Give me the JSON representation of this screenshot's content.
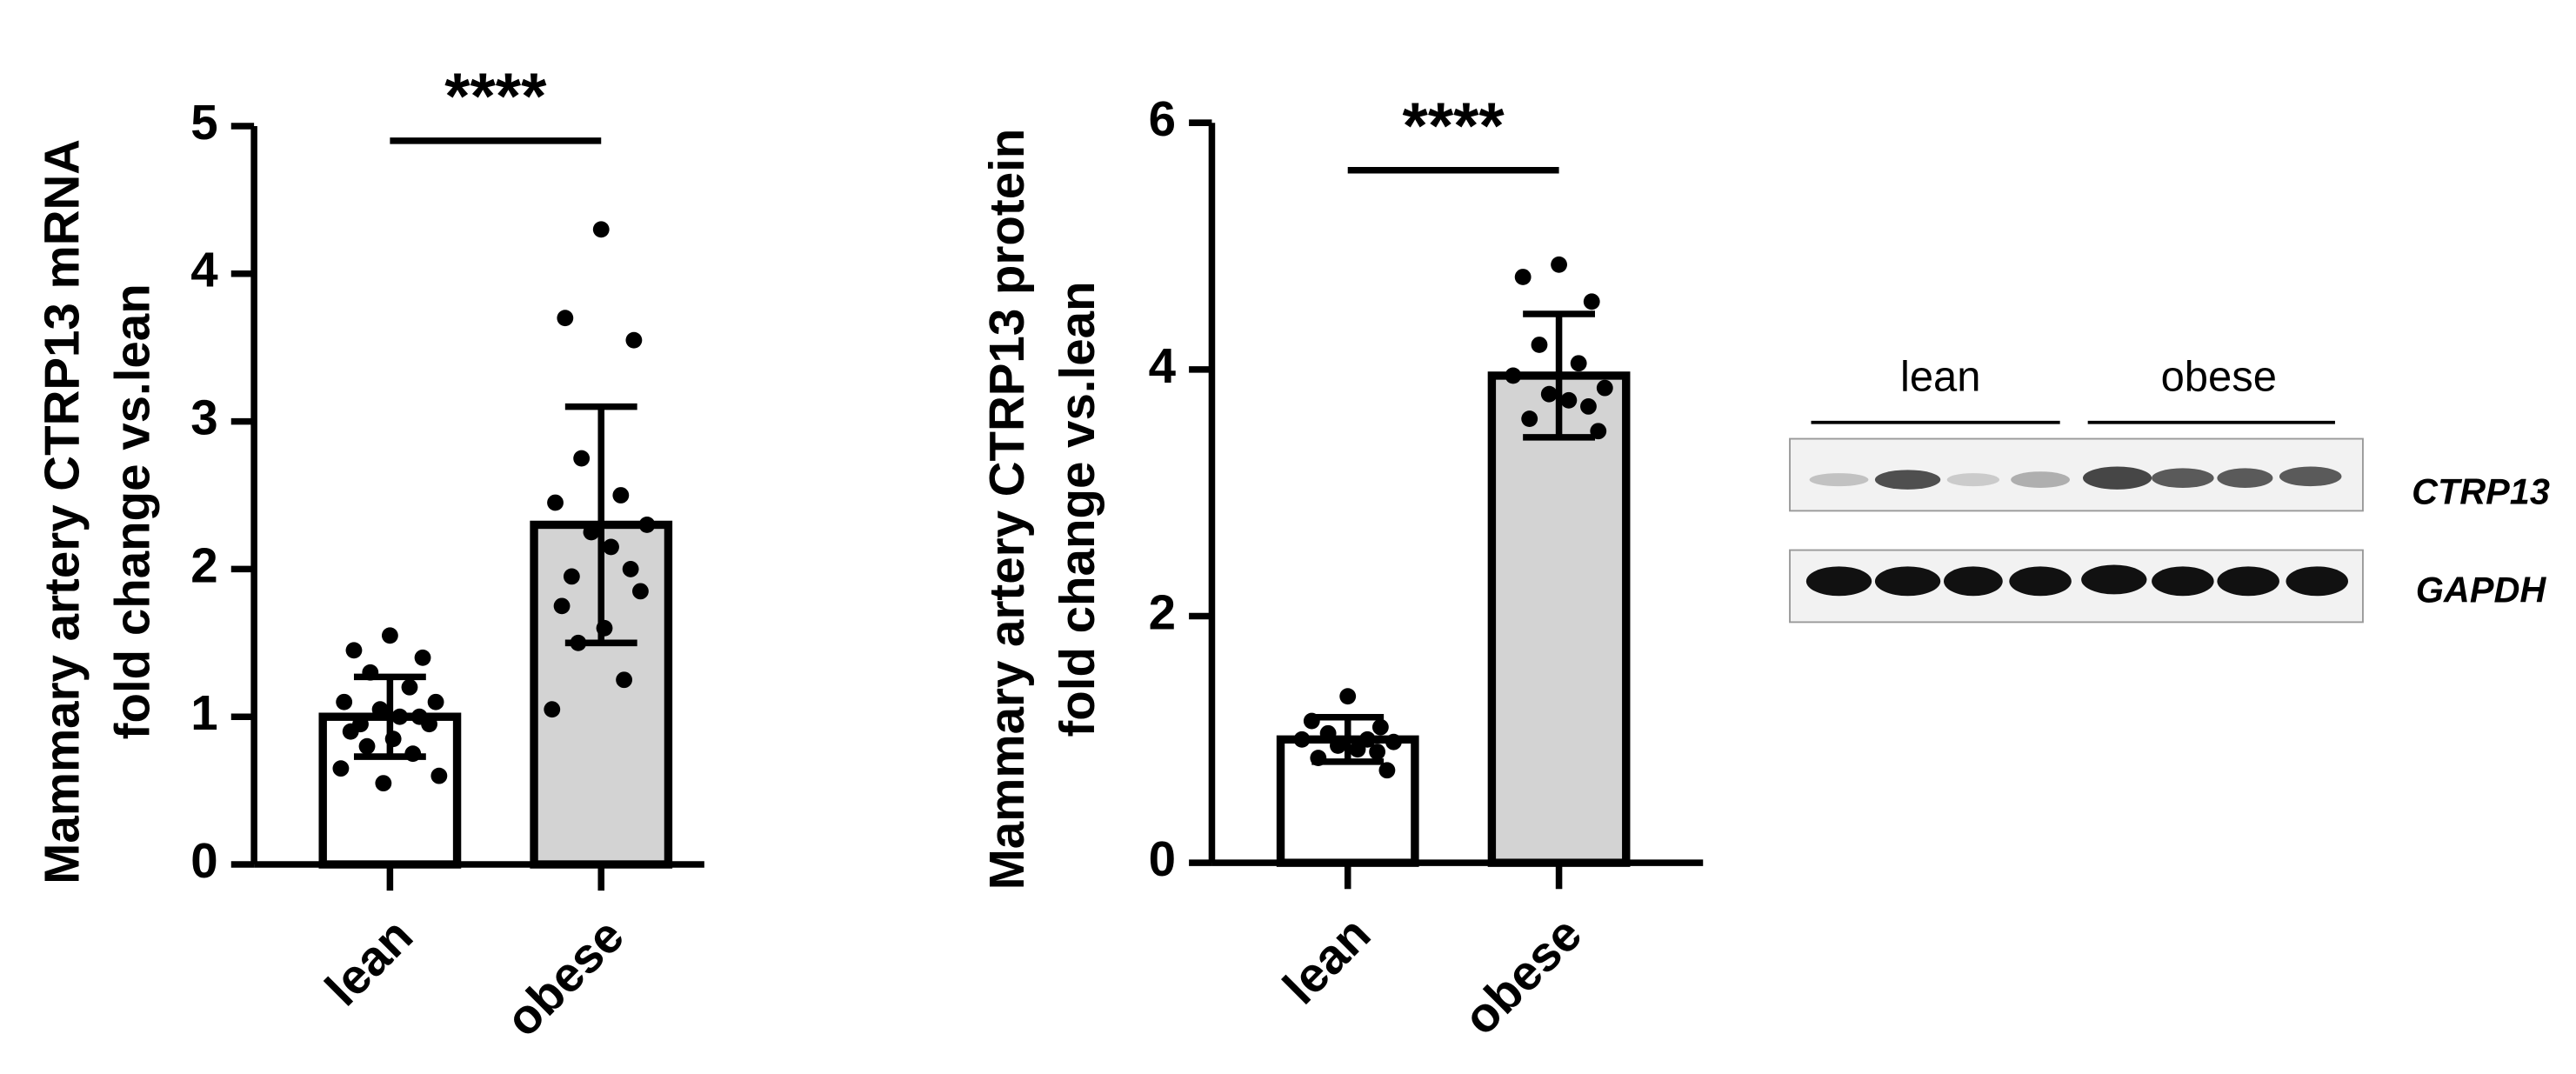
{
  "chart_data": [
    {
      "type": "bar",
      "ylabel": [
        "Mammary artery CTRP13 mRNA",
        "fold change vs.lean"
      ],
      "categories": [
        "lean",
        "obese"
      ],
      "values": [
        1.0,
        2.3
      ],
      "errors": [
        0.27,
        0.8
      ],
      "points": [
        [
          1.55,
          1.45,
          1.4,
          1.3,
          1.2,
          1.1,
          1.1,
          1.05,
          1.0,
          1.0,
          0.95,
          0.95,
          0.9,
          0.85,
          0.8,
          0.75,
          0.65,
          0.6,
          0.55
        ],
        [
          4.3,
          3.7,
          3.55,
          2.75,
          2.5,
          2.45,
          2.3,
          2.25,
          2.15,
          2.0,
          1.95,
          1.85,
          1.75,
          1.6,
          1.5,
          1.25,
          1.05
        ]
      ],
      "colors": [
        "#ffffff",
        "#d3d3d3"
      ],
      "significance": "****",
      "ylim": [
        0,
        5
      ],
      "yticks": [
        0,
        1,
        2,
        3,
        4,
        5
      ]
    },
    {
      "type": "bar",
      "ylabel": [
        "Mammary artery CTRP13 protein",
        "fold change vs.lean"
      ],
      "categories": [
        "lean",
        "obese"
      ],
      "values": [
        1.0,
        3.95
      ],
      "errors": [
        0.18,
        0.5
      ],
      "points": [
        [
          1.35,
          1.15,
          1.1,
          1.05,
          1.0,
          1.0,
          0.98,
          0.95,
          0.92,
          0.9,
          0.85,
          0.75
        ],
        [
          4.85,
          4.75,
          4.55,
          4.2,
          4.05,
          3.95,
          3.85,
          3.8,
          3.75,
          3.7,
          3.6,
          3.5
        ]
      ],
      "colors": [
        "#ffffff",
        "#d3d3d3"
      ],
      "significance": "****",
      "ylim": [
        0,
        6
      ],
      "yticks": [
        0,
        2,
        4,
        6
      ]
    }
  ],
  "blot": {
    "groups": [
      "lean",
      "obese"
    ],
    "bands": [
      "CTRP13",
      "GAPDH"
    ]
  }
}
